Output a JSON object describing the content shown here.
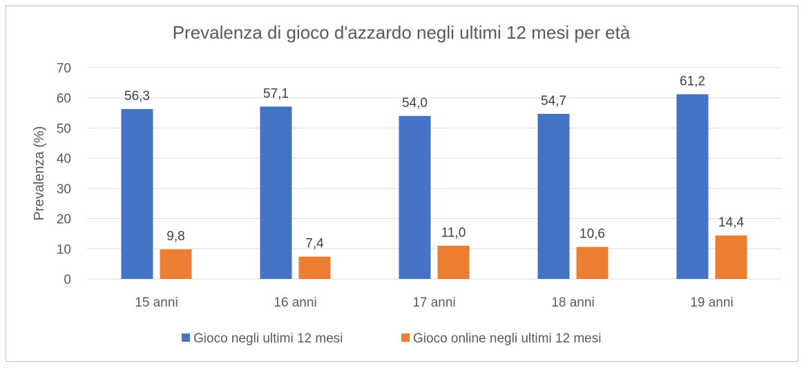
{
  "chart_data": {
    "type": "bar",
    "title": "Prevalenza di gioco d'azzardo negli ultimi 12 mesi per età",
    "xlabel": "",
    "ylabel": "Prevalenza (%)",
    "ylim": [
      0,
      70
    ],
    "yticks": [
      0,
      10,
      20,
      30,
      40,
      50,
      60,
      70
    ],
    "categories": [
      "15 anni",
      "16 anni",
      "17 anni",
      "18 anni",
      "19 anni"
    ],
    "series": [
      {
        "name": "Gioco negli ultimi 12 mesi",
        "color": "#4472C4",
        "values": [
          56.3,
          57.1,
          54.0,
          54.7,
          61.2
        ],
        "labels": [
          "56,3",
          "57,1",
          "54,0",
          "54,7",
          "61,2"
        ]
      },
      {
        "name": "Gioco online negli ultimi 12 mesi",
        "color": "#ED7D31",
        "values": [
          9.8,
          7.4,
          11.0,
          10.6,
          14.4
        ],
        "labels": [
          "9,8",
          "7,4",
          "11,0",
          "10,6",
          "14,4"
        ]
      }
    ],
    "grid": true,
    "legend": "bottom"
  }
}
